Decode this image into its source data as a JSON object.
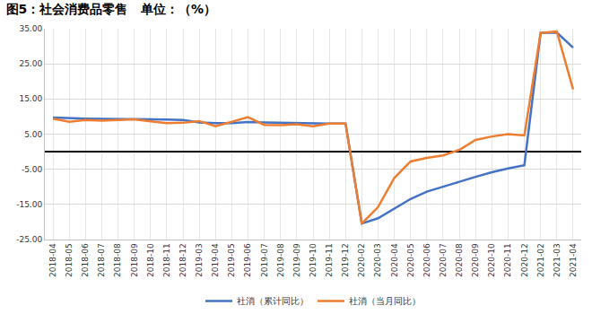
{
  "chart_data": {
    "type": "line",
    "title": "图5：社会消费品零售   单位：（%）",
    "categories": [
      "2018-04",
      "2018-05",
      "2018-06",
      "2018-07",
      "2018-08",
      "2018-09",
      "2018-10",
      "2018-11",
      "2018-12",
      "2019-03",
      "2019-04",
      "2019-05",
      "2019-06",
      "2019-07",
      "2019-08",
      "2019-09",
      "2019-10",
      "2019-11",
      "2019-12",
      "2020-02",
      "2020-03",
      "2020-04",
      "2020-05",
      "2020-06",
      "2020-07",
      "2020-08",
      "2020-09",
      "2020-10",
      "2020-11",
      "2020-12",
      "2021-02",
      "2021-03",
      "2021-04"
    ],
    "series": [
      {
        "name": "社消（累计同比）",
        "color": "#4472c4",
        "values": [
          9.7,
          9.5,
          9.4,
          9.3,
          9.3,
          9.3,
          9.2,
          9.1,
          9.0,
          8.3,
          8.1,
          8.1,
          8.4,
          8.3,
          8.2,
          8.2,
          8.1,
          8.0,
          8.0,
          -20.5,
          -19.0,
          -16.2,
          -13.5,
          -11.4,
          -9.9,
          -8.6,
          -7.2,
          -5.9,
          -4.8,
          -3.9,
          33.8,
          33.9,
          29.6
        ]
      },
      {
        "name": "社消（当月同比）",
        "color": "#ed7d31",
        "values": [
          9.4,
          8.5,
          9.0,
          8.8,
          9.0,
          9.2,
          8.6,
          8.1,
          8.2,
          8.7,
          7.2,
          8.6,
          9.8,
          7.6,
          7.5,
          7.8,
          7.2,
          8.0,
          8.0,
          -20.5,
          -15.8,
          -7.5,
          -2.8,
          -1.8,
          -1.1,
          0.5,
          3.3,
          4.3,
          5.0,
          4.6,
          33.8,
          34.2,
          17.7
        ]
      }
    ],
    "ylim": [
      -25,
      35
    ],
    "yticks": [
      {
        "value": -25,
        "label": "-25.00"
      },
      {
        "value": -15,
        "label": "-15.00"
      },
      {
        "value": -5,
        "label": "-5.00"
      },
      {
        "value": 5,
        "label": "5.00"
      },
      {
        "value": 15,
        "label": "15.00"
      },
      {
        "value": 25,
        "label": "25.00"
      },
      {
        "value": 35,
        "label": "35.00"
      }
    ],
    "grid": true,
    "legend": "bottom"
  }
}
